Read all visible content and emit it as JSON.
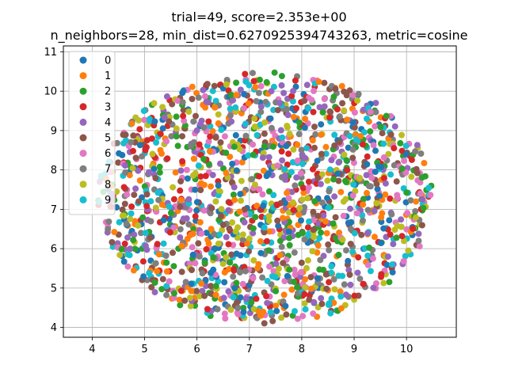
{
  "chart_data": {
    "type": "scatter",
    "title": [
      "trial=49, score=2.353e+00",
      "n_neighbors=28, min_dist=0.6270925394743263, metric=cosine"
    ],
    "xlabel": "",
    "ylabel": "",
    "xlim": [
      3.45,
      10.95
    ],
    "ylim": [
      3.75,
      11.15
    ],
    "xticks": [
      4,
      5,
      6,
      7,
      8,
      9,
      10
    ],
    "yticks": [
      4,
      5,
      6,
      7,
      8,
      9,
      10,
      11
    ],
    "grid": true,
    "legend_position": "top-left",
    "point_distribution": {
      "center": [
        7.3,
        7.3
      ],
      "x_radius": 3.2,
      "y_radius": 3.2,
      "points_per_series": 170
    },
    "series": [
      {
        "name": "0",
        "color": "#1f77b4"
      },
      {
        "name": "1",
        "color": "#ff7f0e"
      },
      {
        "name": "2",
        "color": "#2ca02c"
      },
      {
        "name": "3",
        "color": "#d62728"
      },
      {
        "name": "4",
        "color": "#9467bd"
      },
      {
        "name": "5",
        "color": "#8c564b"
      },
      {
        "name": "6",
        "color": "#e377c2"
      },
      {
        "name": "7",
        "color": "#7f7f7f"
      },
      {
        "name": "8",
        "color": "#bcbd22"
      },
      {
        "name": "9",
        "color": "#17becf"
      }
    ]
  }
}
